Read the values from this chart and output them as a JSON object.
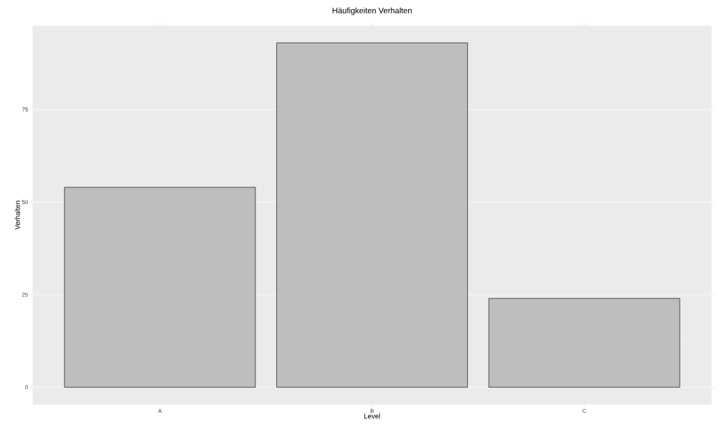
{
  "chart_data": {
    "type": "bar",
    "title": "Häufigkeiten Verhalten",
    "xlabel": "Level",
    "ylabel": "Verhalten",
    "categories": [
      "A",
      "B",
      "C"
    ],
    "values": [
      54,
      93,
      24
    ],
    "color": "#bebebe",
    "ylim": [
      -4.65,
      97.65
    ],
    "yticks": [
      0,
      25,
      50,
      75
    ],
    "grid": "y"
  }
}
